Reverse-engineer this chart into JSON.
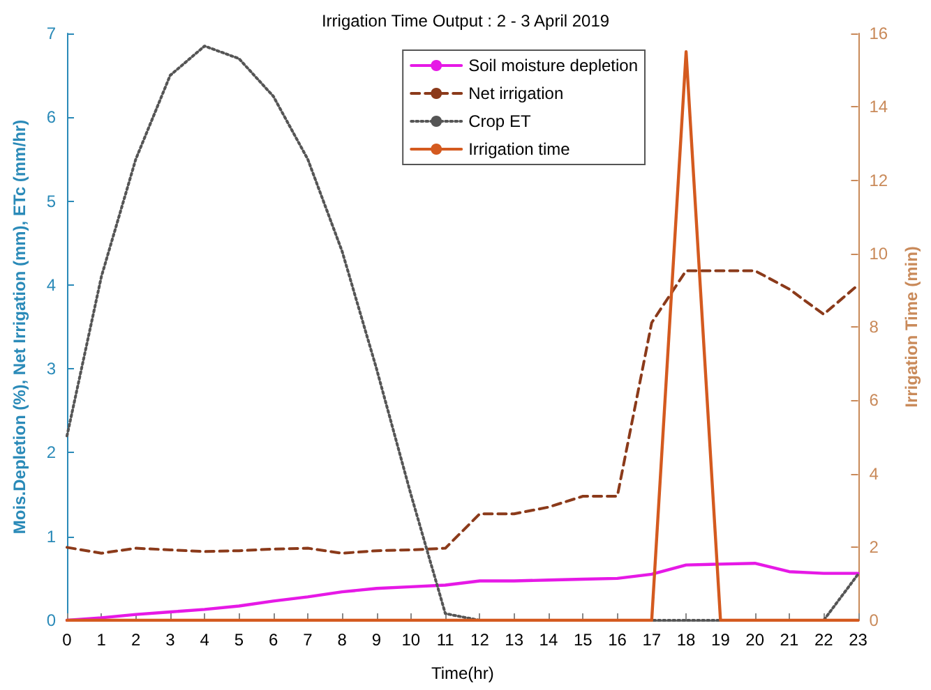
{
  "chart_data": {
    "type": "line",
    "title": "Irrigation Time Output : 2 - 3 April 2019",
    "xlabel": "Time(hr)",
    "ylabel": "Mois.Depletion (%), Net Irrigation (mm), ETc (mm/hr)",
    "y2label": "Irrigation Time (min)",
    "x": [
      0,
      1,
      2,
      3,
      4,
      5,
      6,
      7,
      8,
      9,
      10,
      11,
      12,
      13,
      14,
      15,
      16,
      17,
      18,
      19,
      20,
      21,
      22,
      23
    ],
    "xlim": [
      0,
      23
    ],
    "xticks": [
      0,
      1,
      2,
      3,
      4,
      5,
      6,
      7,
      8,
      9,
      10,
      11,
      12,
      13,
      14,
      15,
      16,
      17,
      18,
      19,
      20,
      21,
      22,
      23
    ],
    "ylim": [
      0,
      7
    ],
    "yticks": [
      0,
      1,
      2,
      3,
      4,
      5,
      6,
      7
    ],
    "y2lim": [
      0,
      16
    ],
    "y2ticks": [
      0,
      2,
      4,
      6,
      8,
      10,
      12,
      14,
      16
    ],
    "grid": false,
    "legend": "top right",
    "marker": "none",
    "series": [
      {
        "name": "Soil moisture depletion",
        "color": "#e619e6",
        "line_style": "solid",
        "values": [
          0,
          0.03,
          0.07,
          0.1,
          0.13,
          0.17,
          0.23,
          0.28,
          0.34,
          0.38,
          0.4,
          0.42,
          0.47,
          0.47,
          0.48,
          0.49,
          0.5,
          0.55,
          0.66,
          0.67,
          0.68,
          0.58,
          0.56,
          0.56
        ]
      },
      {
        "name": "Net irrigation",
        "color": "#8b3a1a",
        "line_style": "dashed",
        "values": [
          0.87,
          0.8,
          0.86,
          0.84,
          0.82,
          0.83,
          0.85,
          0.86,
          0.8,
          0.83,
          0.84,
          0.86,
          1.27,
          1.27,
          1.35,
          1.48,
          1.48,
          3.55,
          4.17,
          4.17,
          4.17,
          3.95,
          3.65,
          4.0
        ]
      },
      {
        "name": "Crop ET",
        "color": "#555555",
        "line_style": "dotted",
        "values": [
          2.2,
          4.1,
          5.5,
          6.5,
          6.85,
          6.7,
          6.25,
          5.5,
          4.4,
          3.0,
          1.5,
          0.08,
          0,
          0,
          0,
          0,
          0,
          0,
          0,
          0,
          0,
          0,
          0,
          0.55
        ]
      },
      {
        "name": "Irrigation time",
        "color": "#d45a1f",
        "line_style": "solid",
        "axis": "y2",
        "values": [
          0,
          0,
          0,
          0,
          0,
          0,
          0,
          0,
          0,
          0,
          0,
          0,
          0,
          0,
          0,
          0,
          0,
          0,
          15.5,
          0,
          0,
          0,
          0,
          0
        ]
      }
    ]
  }
}
